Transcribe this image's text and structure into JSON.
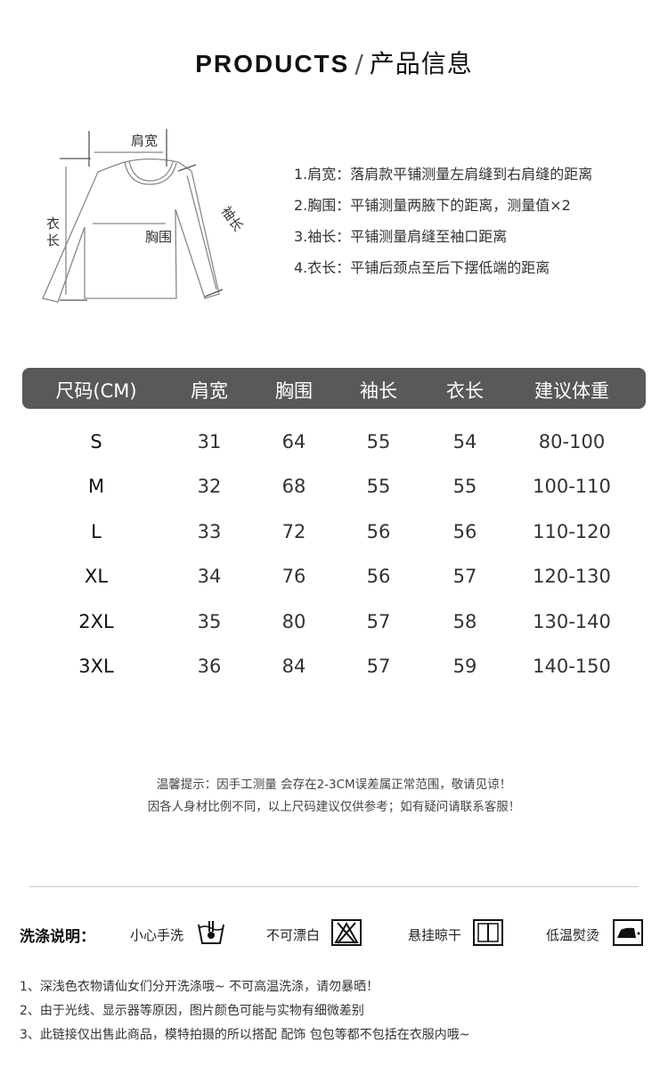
{
  "header": {
    "title_en": "PRODUCTS",
    "separator": "/",
    "title_cn": "产品信息"
  },
  "diagram": {
    "shoulder": "肩宽",
    "chest": "胸围",
    "sleeve": "袖长",
    "length_1": "衣",
    "length_2": "长"
  },
  "notes": [
    "1.肩宽：落肩款平铺测量左肩缝到右肩缝的距离",
    "2.胸围：平铺测量两腋下的距离，测量值×2",
    "3.袖长：平铺测量肩缝至袖口距离",
    "4.衣长：平铺后颈点至后下摆低端的距离"
  ],
  "table": {
    "headers": [
      "尺码(CM)",
      "肩宽",
      "胸围",
      "袖长",
      "衣长",
      "建议体重"
    ],
    "rows": [
      [
        "S",
        "31",
        "64",
        "55",
        "54",
        "80-100"
      ],
      [
        "M",
        "32",
        "68",
        "55",
        "55",
        "100-110"
      ],
      [
        "L",
        "33",
        "72",
        "56",
        "56",
        "110-120"
      ],
      [
        "XL",
        "34",
        "76",
        "56",
        "57",
        "120-130"
      ],
      [
        "2XL",
        "35",
        "80",
        "57",
        "58",
        "130-140"
      ],
      [
        "3XL",
        "36",
        "84",
        "57",
        "59",
        "140-150"
      ]
    ]
  },
  "tips": [
    "温馨提示：因手工测量 会存在2-3CM误差属正常范围，敬请见谅！",
    "因各人身材比例不同，以上尺码建议仅供参考；如有疑问请联系客服！"
  ],
  "care": {
    "title": "洗涤说明：",
    "items": [
      {
        "label": "小心手洗",
        "icon": "hand-wash-icon"
      },
      {
        "label": "不可漂白",
        "icon": "no-bleach-icon"
      },
      {
        "label": "悬挂晾干",
        "icon": "line-dry-icon"
      },
      {
        "label": "低温熨烫",
        "icon": "low-iron-icon"
      }
    ]
  },
  "footer": [
    "1、深浅色衣物请仙女们分开洗涤哦~ 不可高温洗涤，请勿暴晒！",
    "2、由于光线、显示器等原因，图片颜色可能与实物有细微差别",
    "3、此链接仅出售此商品，模特拍摄的所以搭配 配饰 包包等都不包括在衣服内哦~"
  ]
}
